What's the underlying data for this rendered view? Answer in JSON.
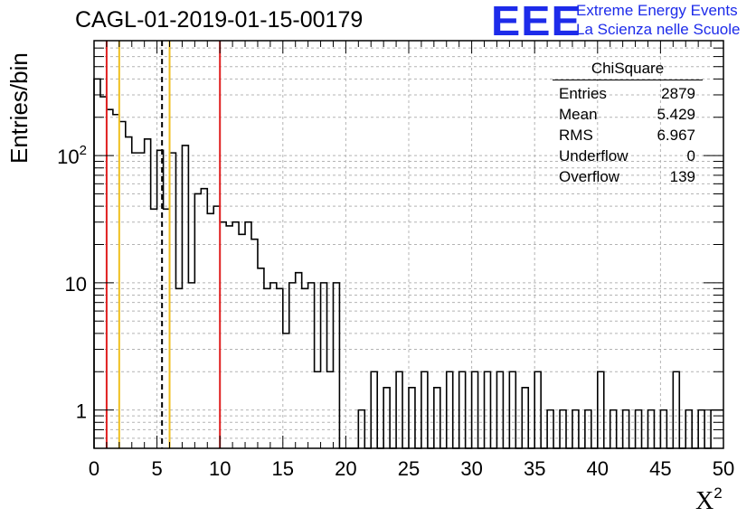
{
  "title": "CAGL-01-2019-01-15-00179",
  "logo": {
    "mark": "EEE",
    "line1": "Extreme Energy Events",
    "line2": "La Scienza nelle Scuole",
    "color": "#1d2bea"
  },
  "stats_box": {
    "header": "ChiSquare",
    "rows": [
      {
        "label": "Entries",
        "value": "2879"
      },
      {
        "label": "Mean",
        "value": "5.429"
      },
      {
        "label": "RMS",
        "value": "6.967"
      },
      {
        "label": "Underflow",
        "value": "0"
      },
      {
        "label": "Overflow",
        "value": "139"
      }
    ]
  },
  "chart_data": {
    "type": "histogram",
    "title": "CAGL-01-2019-01-15-00179",
    "xlabel": "X",
    "xlabel_sup": "2",
    "ylabel": "Entries/bin",
    "xlim": [
      0,
      50
    ],
    "ylim": [
      0.5,
      800
    ],
    "y_scale": "log",
    "grid": true,
    "bin_width": 0.5,
    "x_ticks": [
      "0",
      "5",
      "10",
      "15",
      "20",
      "25",
      "30",
      "35",
      "40",
      "45",
      "50"
    ],
    "y_ticks": [
      {
        "value": 1,
        "base": "1",
        "exp": ""
      },
      {
        "value": 10,
        "base": "10",
        "exp": ""
      },
      {
        "value": 100,
        "base": "10",
        "exp": "2"
      }
    ],
    "bin_values": [
      400,
      290,
      230,
      210,
      185,
      140,
      105,
      105,
      135,
      38,
      110,
      38,
      105,
      9,
      120,
      10,
      50,
      55,
      35,
      40,
      30,
      28,
      30,
      24,
      30,
      22,
      13,
      9,
      10,
      9,
      4,
      10,
      12,
      9,
      10,
      2,
      10,
      2,
      10,
      0,
      0,
      0,
      1,
      0,
      2,
      0,
      1.5,
      0,
      2,
      0,
      1.5,
      0,
      2,
      0,
      1.5,
      0,
      2,
      0,
      2,
      0,
      2,
      0,
      2,
      0,
      2,
      0,
      2,
      0,
      1.5,
      0,
      2,
      0,
      1,
      0,
      1,
      0,
      1,
      0,
      1,
      0,
      2,
      0,
      1,
      0,
      1,
      0,
      1,
      0,
      1,
      0,
      1,
      0,
      2,
      0,
      1,
      0,
      1,
      0,
      1,
      1
    ],
    "vertical_lines": [
      {
        "x": 1.0,
        "color": "#e02020",
        "style": "solid"
      },
      {
        "x": 2.0,
        "color": "#f0c020",
        "style": "solid"
      },
      {
        "x": 5.4,
        "color": "#000000",
        "style": "dashed"
      },
      {
        "x": 6.0,
        "color": "#f0c020",
        "style": "solid"
      },
      {
        "x": 10.0,
        "color": "#e02020",
        "style": "solid"
      }
    ]
  }
}
